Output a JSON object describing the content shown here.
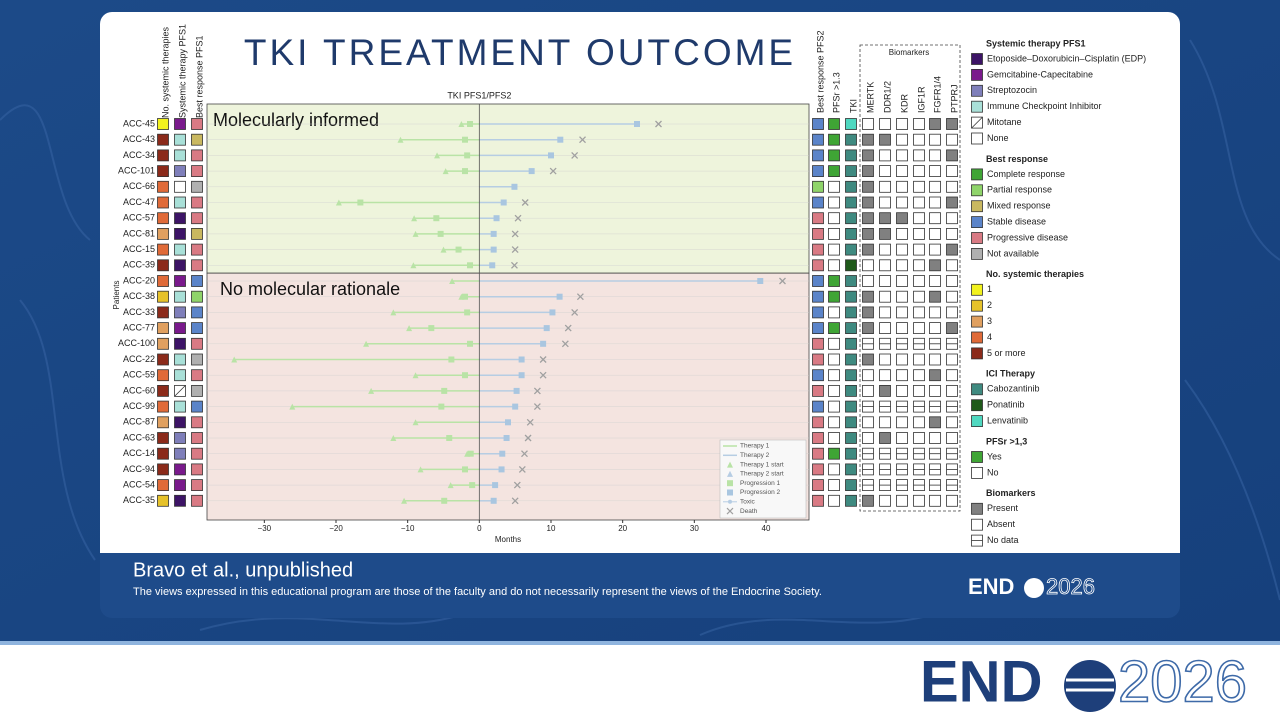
{
  "slide_title": "TKI TREATMENT OUTCOME",
  "citation": "Bravo et al., unpublished",
  "disclaimer": "The views expressed in this educational program are those of the faculty and do not necessarily represent the views of the Endocrine Society.",
  "logo": {
    "left": "END",
    "right": "2026"
  },
  "chart_data": {
    "type": "swimmer",
    "title": "TKI PFS1/PFS2",
    "x_label": "Months",
    "y_label": "Patients",
    "xlim": [
      -38,
      46
    ],
    "xticks": [
      {
        "value": -30,
        "label": "−30"
      },
      {
        "value": -20,
        "label": "−20"
      },
      {
        "value": -10,
        "label": "−10"
      },
      0,
      10,
      20,
      30,
      40
    ],
    "biomarker_header": "Biomarkers",
    "columns": [
      {
        "label": "No. systemic therapies",
        "legend_group": 2,
        "side": "left"
      },
      {
        "label": "Systemic therapy PFS1",
        "legend_group": 0,
        "side": "left"
      },
      {
        "label": "Best response PFS1",
        "legend_group": 1,
        "side": "left"
      },
      {
        "label": "Best response PFS2",
        "legend_group": 1,
        "side": "right"
      },
      {
        "label": "PFSr >1.3",
        "legend_group": 4,
        "side": "right"
      },
      {
        "label": "TKI",
        "legend_group": 3,
        "side": "right"
      },
      {
        "label": "MERTK",
        "legend_group": 5,
        "side": "right"
      },
      {
        "label": "DDR1/2",
        "legend_group": 5,
        "side": "right"
      },
      {
        "label": "KDR",
        "legend_group": 5,
        "side": "right"
      },
      {
        "label": "IGF1R",
        "legend_group": 5,
        "side": "right"
      },
      {
        "label": "FGFR1/4",
        "legend_group": 5,
        "side": "right"
      },
      {
        "label": "PTPRJ",
        "legend_group": 5,
        "side": "right"
      }
    ],
    "groups": [
      {
        "label": "Molecularly informed",
        "color": "#eef4dc",
        "rows": [
          {
            "patient": "ACC-45",
            "t1_start": -2.5,
            "prog1": -1.3,
            "prog2": 22,
            "death": 25,
            "cells": [
              0,
              1,
              4,
              3,
              0,
              2,
              1,
              1,
              1,
              1,
              0,
              0
            ]
          },
          {
            "patient": "ACC-43",
            "t1_start": -11,
            "prog1": -2,
            "prog2": 11.3,
            "death": 14.4,
            "cells": [
              4,
              3,
              2,
              3,
              0,
              0,
              0,
              0,
              1,
              1,
              1,
              1
            ]
          },
          {
            "patient": "ACC-34",
            "t1_start": -5.9,
            "prog1": -1.7,
            "prog2": 10,
            "death": 13.3,
            "cells": [
              4,
              3,
              4,
              3,
              0,
              0,
              0,
              1,
              1,
              1,
              1,
              0
            ]
          },
          {
            "patient": "ACC-101",
            "t1_start": -4.7,
            "prog1": -2,
            "prog2": 7.3,
            "death": 10.3,
            "cells": [
              4,
              2,
              4,
              3,
              0,
              0,
              0,
              1,
              1,
              1,
              1,
              1
            ]
          },
          {
            "patient": "ACC-66",
            "t1_start": null,
            "prog1": null,
            "prog2": 4.9,
            "death": null,
            "cells": [
              3,
              5,
              5,
              1,
              1,
              0,
              0,
              1,
              1,
              1,
              1,
              1
            ]
          },
          {
            "patient": "ACC-47",
            "t1_start": -19.6,
            "prog1": -16.6,
            "prog2": 3.4,
            "death": 6.4,
            "cells": [
              3,
              3,
              4,
              3,
              1,
              0,
              0,
              1,
              1,
              1,
              1,
              0
            ]
          },
          {
            "patient": "ACC-57",
            "t1_start": -9.1,
            "prog1": -6,
            "prog2": 2.4,
            "death": 5.4,
            "cells": [
              3,
              0,
              4,
              4,
              1,
              0,
              0,
              0,
              0,
              1,
              1,
              1
            ]
          },
          {
            "patient": "ACC-81",
            "t1_start": -8.9,
            "prog1": -5.4,
            "prog2": 2,
            "death": 5,
            "cells": [
              2,
              0,
              2,
              4,
              1,
              0,
              0,
              0,
              1,
              1,
              1,
              1
            ]
          },
          {
            "patient": "ACC-15",
            "t1_start": -5,
            "prog1": -2.9,
            "prog2": 2,
            "death": 5,
            "cells": [
              3,
              3,
              4,
              4,
              1,
              0,
              0,
              1,
              1,
              1,
              1,
              0
            ]
          },
          {
            "patient": "ACC-39",
            "t1_start": -9.2,
            "prog1": -1.3,
            "prog2": 1.8,
            "death": 4.9,
            "cells": [
              4,
              0,
              4,
              4,
              1,
              1,
              1,
              1,
              1,
              1,
              0,
              1
            ]
          }
        ]
      },
      {
        "label": "No molecular rationale",
        "color": "#f4e4e0",
        "rows": [
          {
            "patient": "ACC-20",
            "t1_start": -3.8,
            "prog1": null,
            "prog2": 39.2,
            "death": 42.3,
            "cells": [
              3,
              1,
              3,
              3,
              0,
              0,
              1,
              1,
              1,
              1,
              1,
              1
            ]
          },
          {
            "patient": "ACC-38",
            "t1_start": -2.5,
            "prog1": -2,
            "prog2": 11.2,
            "death": 14.1,
            "cells": [
              1,
              3,
              1,
              3,
              0,
              0,
              0,
              1,
              1,
              1,
              0,
              1
            ]
          },
          {
            "patient": "ACC-33",
            "t1_start": -12,
            "prog1": -1.7,
            "prog2": 10.2,
            "death": 13.3,
            "cells": [
              4,
              2,
              3,
              3,
              1,
              0,
              0,
              1,
              1,
              1,
              1,
              1
            ]
          },
          {
            "patient": "ACC-77",
            "t1_start": -9.8,
            "prog1": -6.7,
            "prog2": 9.4,
            "death": 12.4,
            "cells": [
              2,
              1,
              3,
              3,
              0,
              0,
              0,
              1,
              1,
              1,
              1,
              0
            ]
          },
          {
            "patient": "ACC-100",
            "t1_start": -15.8,
            "prog1": -1.3,
            "prog2": 8.9,
            "death": 12,
            "cells": [
              2,
              0,
              4,
              4,
              1,
              0,
              2,
              2,
              2,
              2,
              2,
              2
            ]
          },
          {
            "patient": "ACC-22",
            "t1_start": -34.2,
            "prog1": -3.9,
            "prog2": 5.9,
            "death": 8.9,
            "cells": [
              4,
              3,
              5,
              4,
              1,
              0,
              0,
              1,
              1,
              1,
              1,
              1
            ]
          },
          {
            "patient": "ACC-59",
            "t1_start": -8.9,
            "prog1": -2,
            "prog2": 5.9,
            "death": 8.9,
            "cells": [
              3,
              3,
              4,
              3,
              1,
              0,
              1,
              1,
              1,
              1,
              0,
              1
            ]
          },
          {
            "patient": "ACC-60",
            "t1_start": -15.1,
            "prog1": -4.9,
            "prog2": 5.2,
            "death": 8.1,
            "cells": [
              4,
              4,
              5,
              4,
              1,
              0,
              1,
              0,
              1,
              1,
              1,
              1
            ]
          },
          {
            "patient": "ACC-99",
            "t1_start": -26.1,
            "prog1": -5.3,
            "prog2": 5,
            "death": 8.1,
            "cells": [
              3,
              3,
              3,
              3,
              1,
              0,
              2,
              2,
              2,
              2,
              2,
              2
            ]
          },
          {
            "patient": "ACC-87",
            "t1_start": -8.9,
            "prog1": null,
            "prog2": 4,
            "death": 7.1,
            "cells": [
              2,
              0,
              4,
              4,
              1,
              0,
              1,
              1,
              1,
              1,
              0,
              1
            ]
          },
          {
            "patient": "ACC-63",
            "t1_start": -12,
            "prog1": -4.2,
            "prog2": 3.8,
            "death": 6.8,
            "cells": [
              4,
              2,
              4,
              4,
              1,
              0,
              1,
              0,
              1,
              1,
              1,
              1
            ]
          },
          {
            "patient": "ACC-14",
            "t1_start": -1.7,
            "prog1": -1.2,
            "prog2": 3.2,
            "death": 6.3,
            "cells": [
              4,
              2,
              4,
              4,
              0,
              0,
              2,
              2,
              2,
              2,
              2,
              2
            ]
          },
          {
            "patient": "ACC-94",
            "t1_start": -8.2,
            "prog1": -2,
            "prog2": 3.1,
            "death": 6,
            "cells": [
              4,
              1,
              4,
              4,
              1,
              0,
              2,
              2,
              2,
              2,
              2,
              2
            ]
          },
          {
            "patient": "ACC-54",
            "t1_start": -4,
            "prog1": -1,
            "prog2": 2.2,
            "death": 5.3,
            "cells": [
              3,
              1,
              4,
              4,
              1,
              0,
              2,
              2,
              2,
              2,
              2,
              2
            ]
          },
          {
            "patient": "ACC-35",
            "t1_start": -10.5,
            "prog1": -4.9,
            "prog2": 2,
            "death": 5,
            "cells": [
              1,
              0,
              4,
              4,
              1,
              0,
              0,
              1,
              1,
              1,
              1,
              1
            ]
          }
        ]
      }
    ],
    "plot_legend": [
      {
        "label": "Therapy 1",
        "color": "#b9e3a6",
        "marker": "line"
      },
      {
        "label": "Therapy 2",
        "color": "#b6cde3",
        "marker": "line"
      },
      {
        "label": "Therapy 1 start",
        "color": "#b9e3a6",
        "marker": "triangle"
      },
      {
        "label": "Therapy 2 start",
        "color": "#b6cde3",
        "marker": "triangle"
      },
      {
        "label": "Progression 1",
        "color": "#b9e3a6",
        "marker": "square"
      },
      {
        "label": "Progression 2",
        "color": "#a9c6e0",
        "marker": "square"
      },
      {
        "label": "Toxic",
        "color": "#b6cde3",
        "marker": "dot"
      },
      {
        "label": "Death",
        "color": "#a0a0a0",
        "marker": "x"
      }
    ],
    "legend": [
      {
        "title": "Systemic therapy PFS1",
        "items": [
          {
            "label": "Etoposide–Doxorubicin–Cisplatin (EDP)",
            "color": "#3d1466"
          },
          {
            "label": "Gemcitabine-Capecitabine",
            "color": "#7a1a8c"
          },
          {
            "label": "Streptozocin",
            "color": "#7f7fba"
          },
          {
            "label": "Immune Checkpoint Inhibitor",
            "color": "#a9e0d8"
          },
          {
            "label": "Mitotane",
            "color": "#ffffff",
            "hatch": true
          },
          {
            "label": "None",
            "color": "#ffffff"
          }
        ]
      },
      {
        "title": "Best response",
        "items": [
          {
            "label": "Complete response",
            "color": "#3fa535"
          },
          {
            "label": "Partial response",
            "color": "#8fd46a"
          },
          {
            "label": "Mixed response",
            "color": "#c9b860"
          },
          {
            "label": "Stable disease",
            "color": "#5b84c9"
          },
          {
            "label": "Progressive disease",
            "color": "#d97a84"
          },
          {
            "label": "Not available",
            "color": "#b0b0b0"
          }
        ]
      },
      {
        "title": "No. systemic therapies",
        "items": [
          {
            "label": "1",
            "color": "#f2f21e"
          },
          {
            "label": "2",
            "color": "#e6c22a"
          },
          {
            "label": "3",
            "color": "#e0a060"
          },
          {
            "label": "4",
            "color": "#e06a38"
          },
          {
            "label": "5 or more",
            "color": "#8b2a1a"
          }
        ]
      },
      {
        "title": "ICI Therapy",
        "items": [
          {
            "label": "Cabozantinib",
            "color": "#3f8a80"
          },
          {
            "label": "Ponatinib",
            "color": "#1f5a1a"
          },
          {
            "label": "Lenvatinib",
            "color": "#4fd8c0"
          }
        ]
      },
      {
        "title": "PFSr >1,3",
        "items": [
          {
            "label": "Yes",
            "color": "#3fa535"
          },
          {
            "label": "No",
            "color": "#ffffff"
          }
        ]
      },
      {
        "title": "Biomarkers",
        "items": [
          {
            "label": "Present",
            "color": "#808080"
          },
          {
            "label": "Absent",
            "color": "#ffffff"
          },
          {
            "label": "No data",
            "color": "#ffffff",
            "nodata": true
          }
        ]
      }
    ]
  }
}
